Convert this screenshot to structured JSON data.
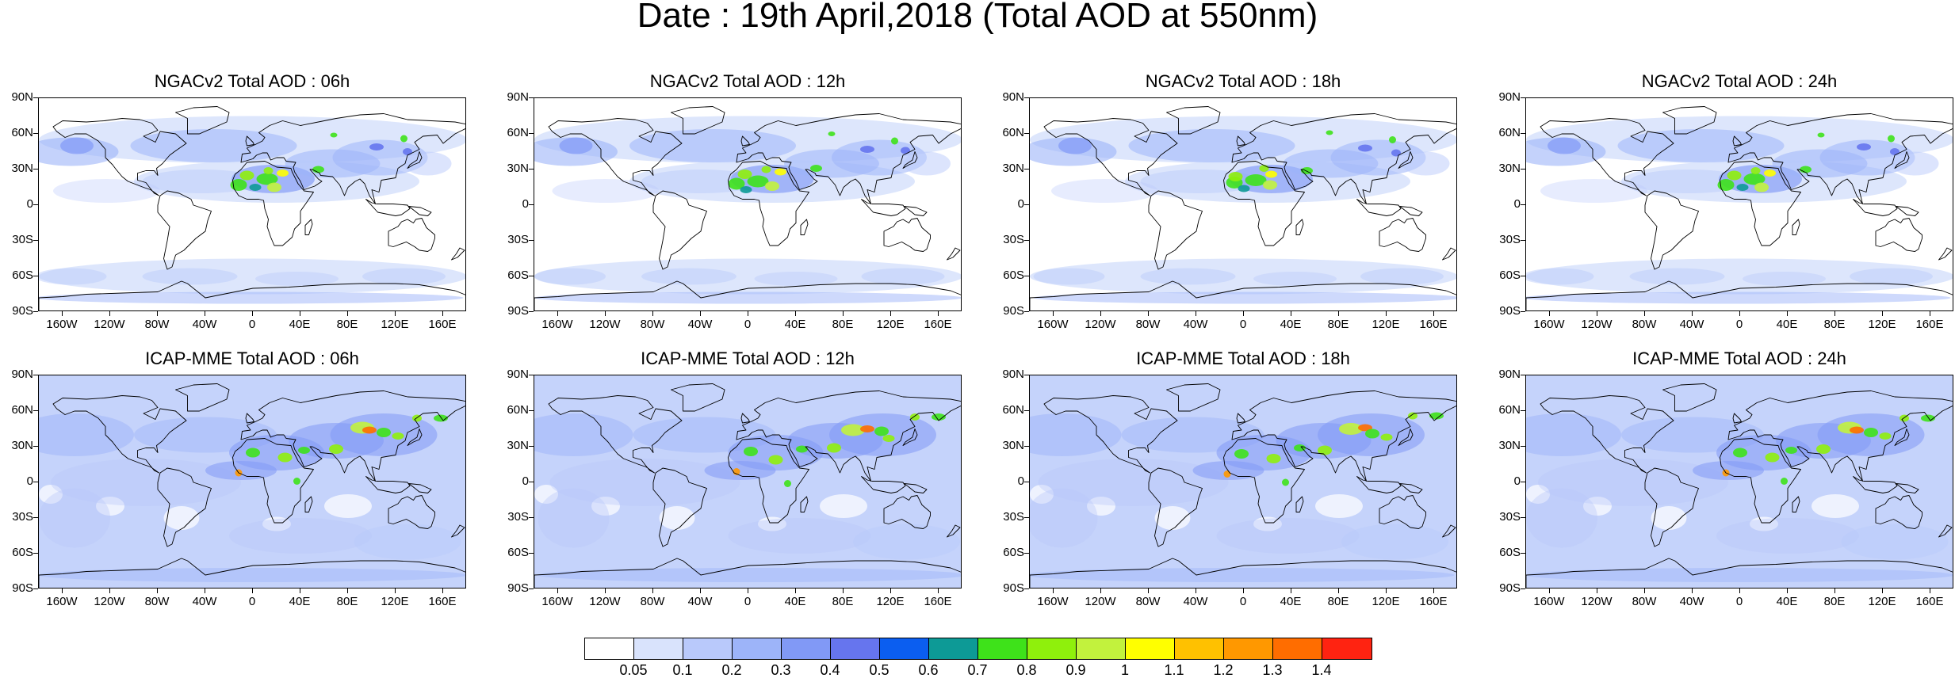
{
  "title": "Date : 19th April,2018 (Total AOD at 550nm)",
  "panels": [
    {
      "title": "NGACv2 Total AOD : 06h",
      "model": "NGACv2",
      "hour": "06h"
    },
    {
      "title": "NGACv2 Total AOD : 12h",
      "model": "NGACv2",
      "hour": "12h"
    },
    {
      "title": "NGACv2 Total AOD : 18h",
      "model": "NGACv2",
      "hour": "18h"
    },
    {
      "title": "NGACv2 Total AOD : 24h",
      "model": "NGACv2",
      "hour": "24h"
    },
    {
      "title": "ICAP-MME Total AOD : 06h",
      "model": "ICAP-MME",
      "hour": "06h"
    },
    {
      "title": "ICAP-MME Total AOD : 12h",
      "model": "ICAP-MME",
      "hour": "12h"
    },
    {
      "title": "ICAP-MME Total AOD : 18h",
      "model": "ICAP-MME",
      "hour": "18h"
    },
    {
      "title": "ICAP-MME Total AOD : 24h",
      "model": "ICAP-MME",
      "hour": "24h"
    }
  ],
  "lat_labels": [
    "90N",
    "60N",
    "30N",
    "0",
    "30S",
    "60S",
    "90S"
  ],
  "lon_labels": [
    "160W",
    "120W",
    "80W",
    "40W",
    "0",
    "40E",
    "80E",
    "120E",
    "160E"
  ],
  "colorbar": {
    "levels": [
      "0.05",
      "0.1",
      "0.2",
      "0.3",
      "0.4",
      "0.5",
      "0.6",
      "0.7",
      "0.8",
      "0.9",
      "1",
      "1.1",
      "1.2",
      "1.3",
      "1.4"
    ],
    "colors": [
      "#ffffff",
      "#d9e3fc",
      "#b9c9fb",
      "#9db4f9",
      "#8199f6",
      "#6675ee",
      "#0b5ef0",
      "#0d9a96",
      "#3ee21a",
      "#8ff00c",
      "#c2f23d",
      "#ffff00",
      "#ffc100",
      "#ff9800",
      "#ff6d00",
      "#ff2311"
    ]
  }
}
